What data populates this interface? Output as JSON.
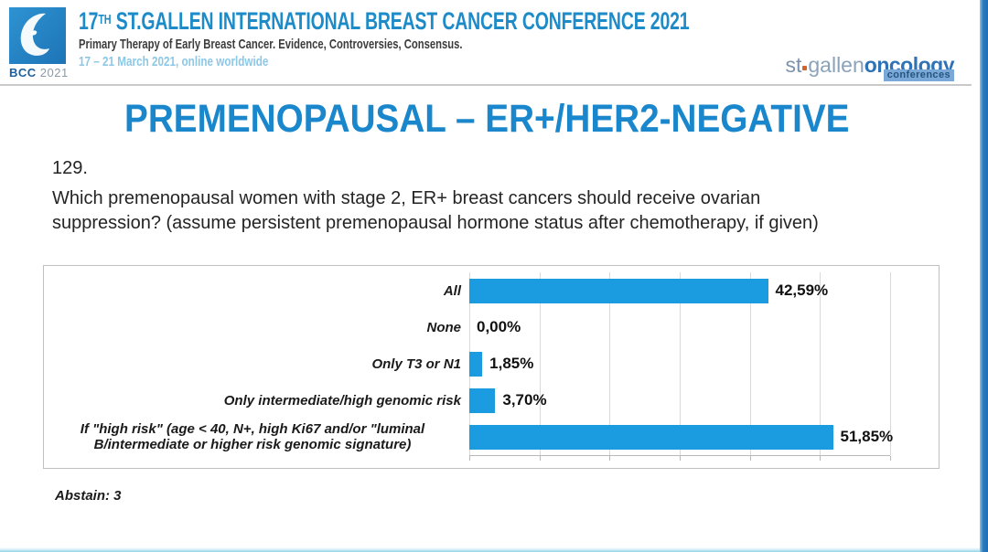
{
  "header": {
    "logo_text": "BCC",
    "logo_year": "2021",
    "title_num": "17",
    "title_sup": "TH",
    "title_rest": " ST.GALLEN INTERNATIONAL BREAST CANCER CONFERENCE 2021",
    "subtitle": "Primary Therapy of Early Breast Cancer. Evidence, Controversies, Consensus.",
    "date_line": "17 – 21 March 2021, online worldwide",
    "brand_st": "st",
    "brand_gallen": "gallen",
    "brand_oncology": "oncology",
    "brand_badge": "conferences"
  },
  "slide": {
    "title": "PREMENOPAUSAL – ER+/HER2-NEGATIVE",
    "question_number": "129.",
    "question_lines": [
      "Which premenopausal women with stage 2, ER+ breast cancers should receive ovarian",
      "suppression? (assume persistent premenopausal hormone status after chemotherapy, if given)"
    ],
    "abstain": "Abstain: 3"
  },
  "icons": {
    "bcc_logo": "swan-drop-icon"
  },
  "colors": {
    "accent_blue": "#1a87cc",
    "bar_blue": "#1b9ce0",
    "header_blue": "#1e8bc9",
    "date_blue": "#8cc8e6",
    "edge_bar_blue": "#2c7cbe"
  },
  "chart_data": {
    "type": "bar",
    "orientation": "horizontal",
    "title": "",
    "xlabel": "",
    "ylabel": "",
    "categories": [
      "All",
      "None",
      "Only T3 or N1",
      "Only intermediate/high genomic risk",
      "If \"high risk\" (age < 40, N+, high Ki67 and/or \"luminal\nB/intermediate or higher risk genomic signature)"
    ],
    "values": [
      42.59,
      0.0,
      1.85,
      3.7,
      51.85
    ],
    "value_labels": [
      "42,59%",
      "0,00%",
      "1,85%",
      "3,70%",
      "51,85%"
    ],
    "xlim": [
      0,
      60
    ],
    "gridline_step": 10,
    "grid": true,
    "legend": false,
    "bar_color": "#1b9ce0"
  }
}
